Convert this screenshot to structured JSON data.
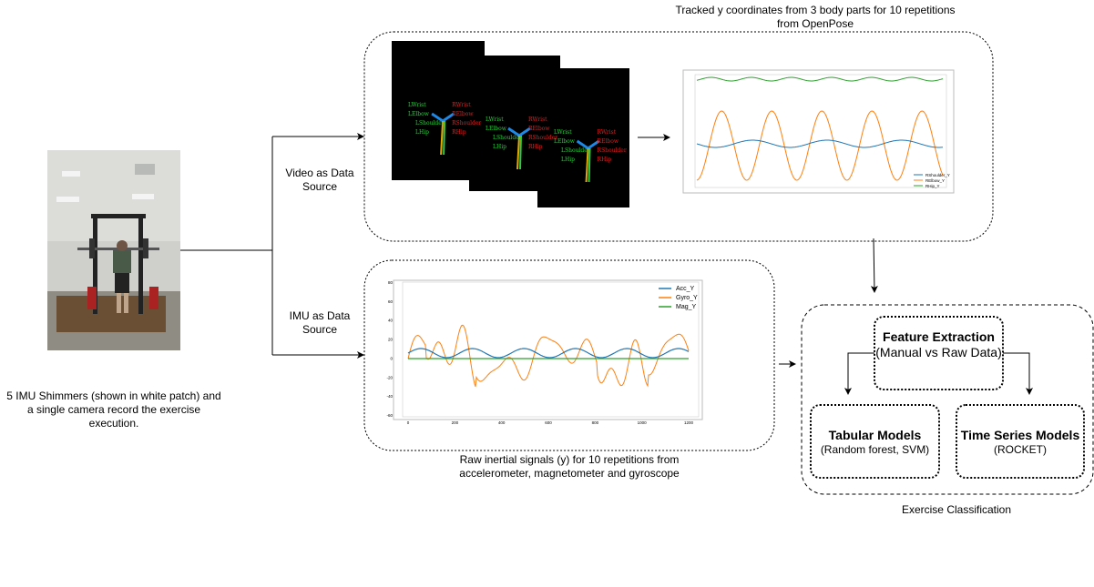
{
  "camera_caption": "5 IMU Shimmers (shown in white patch) and a single camera record the exercise execution.",
  "branches": {
    "video": "Video as Data Source",
    "imu": "IMU as Data Source"
  },
  "video_caption": "Tracked y coordinates from 3 body parts for 10 repetitions from OpenPose",
  "imu_caption": "Raw inertial signals (y) for 10 repetitions from accelerometer, magnetometer and gyroscope",
  "pose_labels": {
    "left": [
      "LWrist",
      "LElbow",
      "LShoulder",
      "LHip"
    ],
    "right": [
      "RWrist",
      "RElbow",
      "RShoulder",
      "RHip"
    ]
  },
  "video_plot": {
    "legend": [
      "RShoulder_Y",
      "RElbow_Y",
      "RHip_Y"
    ]
  },
  "imu_plot": {
    "legend": [
      "Acc_Y",
      "Gyro_Y",
      "Mag_Y"
    ],
    "xticks": [
      "0",
      "200",
      "400",
      "600",
      "800",
      "1000",
      "1200"
    ],
    "yticks": [
      "80",
      "60",
      "40",
      "20",
      "0",
      "-20",
      "-40",
      "-60"
    ]
  },
  "classification": {
    "label": "Exercise Classification",
    "feature_extraction": {
      "title": "Feature Extraction",
      "subtitle": "(Manual vs Raw Data)"
    },
    "tabular": {
      "title": "Tabular Models",
      "subtitle": "(Random forest, SVM)"
    },
    "time_series": {
      "title": "Time Series Models",
      "subtitle": "(ROCKET)"
    }
  }
}
